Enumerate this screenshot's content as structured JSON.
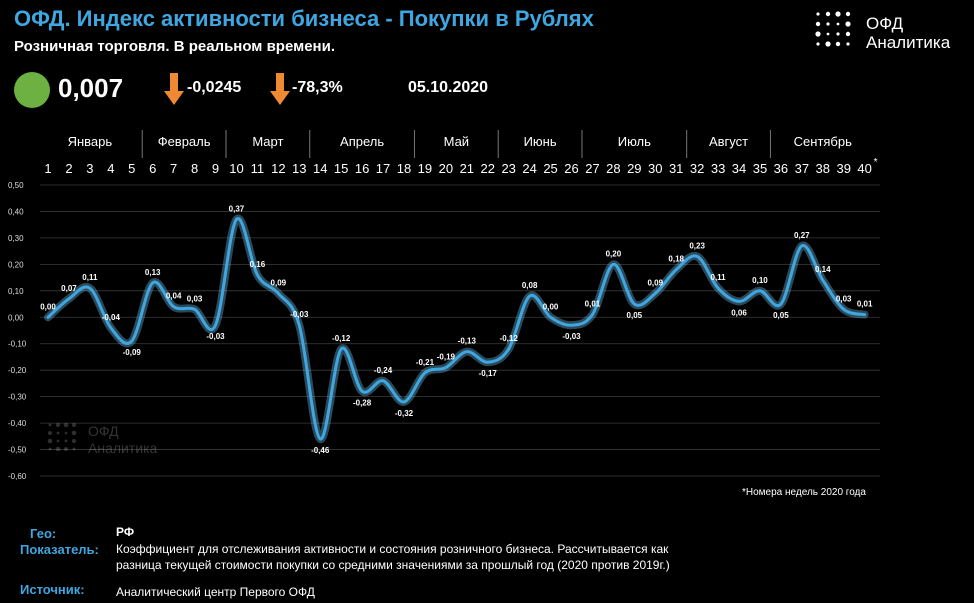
{
  "header": {
    "title": "ОФД. Индекс активности бизнеса - Покупки в Рублях",
    "subtitle": "Розничная торговля. В реальном времени.",
    "current_value": "0,007",
    "delta_abs": "-0,0245",
    "delta_pct": "-78,3%",
    "date": "05.10.2020",
    "status_color": "#6cb142",
    "arrow_color": "#f08a32"
  },
  "brand": {
    "line1": "ОФД",
    "line2": "Аналитика"
  },
  "watermark": {
    "line1": "ОФД",
    "line2": "Аналитика"
  },
  "chart_data": {
    "type": "line",
    "months": [
      {
        "name": "Январь",
        "from": 1,
        "to": 5
      },
      {
        "name": "Февраль",
        "from": 6,
        "to": 9
      },
      {
        "name": "Март",
        "from": 10,
        "to": 13
      },
      {
        "name": "Апрель",
        "from": 14,
        "to": 18
      },
      {
        "name": "Май",
        "from": 19,
        "to": 22
      },
      {
        "name": "Июнь",
        "from": 23,
        "to": 26
      },
      {
        "name": "Июль",
        "from": 27,
        "to": 31
      },
      {
        "name": "Август",
        "from": 32,
        "to": 35
      },
      {
        "name": "Сентябрь",
        "from": 36,
        "to": 40
      }
    ],
    "x": [
      1,
      2,
      3,
      4,
      5,
      6,
      7,
      8,
      9,
      10,
      11,
      12,
      13,
      14,
      15,
      16,
      17,
      18,
      19,
      20,
      21,
      22,
      23,
      24,
      25,
      26,
      27,
      28,
      29,
      30,
      31,
      32,
      33,
      34,
      35,
      36,
      37,
      38,
      39,
      40
    ],
    "x_last_mark": "*",
    "values": [
      0.0,
      0.07,
      0.11,
      -0.04,
      -0.09,
      0.13,
      0.04,
      0.03,
      -0.03,
      0.37,
      0.16,
      0.09,
      -0.03,
      -0.46,
      -0.12,
      -0.28,
      -0.24,
      -0.32,
      -0.21,
      -0.19,
      -0.13,
      -0.17,
      -0.12,
      0.08,
      0.0,
      -0.03,
      0.01,
      0.2,
      0.05,
      0.09,
      0.18,
      0.23,
      0.11,
      0.06,
      0.1,
      0.05,
      0.27,
      0.14,
      0.03,
      0.01
    ],
    "value_labels": [
      "0,00",
      "0,07",
      "0,11",
      "-0,04",
      "-0,09",
      "0,13",
      "0,04",
      "0,03",
      "-0,03",
      "0,37",
      "0,16",
      "0,09",
      "-0,03",
      "-0,46",
      "-0,12",
      "-0,28",
      "-0,24",
      "-0,32",
      "-0,21",
      "-0,19",
      "-0,13",
      "-0,17",
      "-0,12",
      "0,08",
      "0,00",
      "-0,03",
      "0,01",
      "0,20",
      "0,05",
      "0,09",
      "0,18",
      "0,23",
      "0,11",
      "0,06",
      "0,10",
      "0,05",
      "0,27",
      "0,14",
      "0,03",
      "0,01"
    ],
    "ylim": [
      -0.6,
      0.5
    ],
    "yticks": [
      0.5,
      0.4,
      0.3,
      0.2,
      0.1,
      0.0,
      -0.1,
      -0.2,
      -0.3,
      -0.4,
      -0.5,
      -0.6
    ],
    "ytick_labels": [
      "0,50",
      "0,40",
      "0,30",
      "0,20",
      "0,10",
      "0,00",
      "-0,10",
      "-0,20",
      "-0,30",
      "-0,40",
      "-0,50",
      "-0,60"
    ],
    "grid": true,
    "line_color": "#3ea6e0",
    "footnote": "*Номера недель 2020 года"
  },
  "footer": {
    "geo_label": "Гео:",
    "geo_value": "РФ",
    "indicator_label": "Показатель:",
    "indicator_line1": "Коэффициент для отслеживания активности и состояния розничного бизнеса. Рассчитывается как",
    "indicator_line2": "разница текущей стоимости покупки со средними значениями за прошлый год (2020 против 2019г.)",
    "source_label": "Источник:",
    "source_value": "Аналитический центр  Первого ОФД"
  }
}
